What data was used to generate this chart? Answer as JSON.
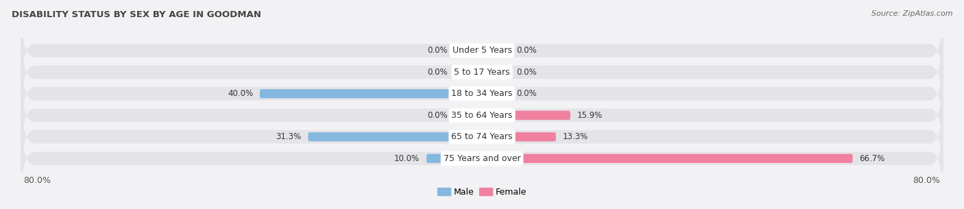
{
  "title": "DISABILITY STATUS BY SEX BY AGE IN GOODMAN",
  "source": "Source: ZipAtlas.com",
  "categories": [
    "Under 5 Years",
    "5 to 17 Years",
    "18 to 34 Years",
    "35 to 64 Years",
    "65 to 74 Years",
    "75 Years and over"
  ],
  "male_values": [
    0.0,
    0.0,
    40.0,
    0.0,
    31.3,
    10.0
  ],
  "female_values": [
    0.0,
    0.0,
    0.0,
    15.9,
    13.3,
    66.7
  ],
  "male_color": "#85b8df",
  "female_color": "#f080a0",
  "male_color_light": "#bad4ea",
  "female_color_light": "#f8bfcf",
  "row_bg_color": "#e4e4e8",
  "chart_bg_color": "#f2f2f5",
  "axis_limit": 80.0,
  "legend_male": "Male",
  "legend_female": "Female",
  "title_color": "#444444",
  "source_color": "#666666",
  "label_color": "#333333",
  "axis_label_color": "#555555",
  "zero_stub": 5.0,
  "label_font_size": 9.0,
  "value_font_size": 8.5
}
